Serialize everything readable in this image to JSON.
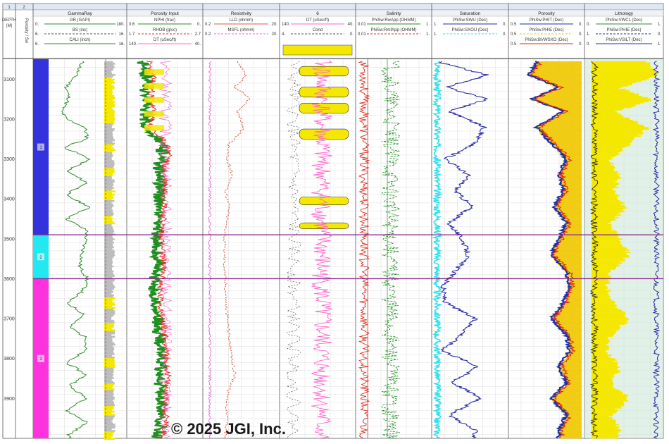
{
  "colors": {
    "gamma": "#2e8b2e",
    "yellow_fill": "#f5e800",
    "gray_fill": "#bdbdbd",
    "nphi": "#1f8f1f",
    "rhob": "#e03020",
    "dt": "#ff66cc",
    "resist_deep": "#e05a40",
    "resist_shallow": "#ee66dd",
    "swu": "#2a2aa8",
    "sxou": "#33e0ee",
    "phit": "#1a2fa8",
    "phie": "#f0c800",
    "bvw": "#e02020",
    "zone1": "#3333dd",
    "zone2": "#22e8f0",
    "zone3": "#ff33dd",
    "zone_line": "#8a2b8a"
  },
  "header": {
    "track_numbers": [
      "1",
      "2",
      "",
      "",
      "",
      "",
      "",
      "",
      "",
      ""
    ],
    "depth_label": "DEPTH",
    "depth_unit": "(M)",
    "zone_col_label": "Porosity / Sw",
    "track_titles": [
      "GammaRay",
      "Porosity Input",
      "Resistivity",
      "6",
      "Salinity",
      "Saturation",
      "Porosity",
      "Lithology"
    ],
    "curves": {
      "gammaray": [
        {
          "name": "GR (GAPI)",
          "left": "0.",
          "right": "180."
        },
        {
          "name": "BS (inc)",
          "left": "6.",
          "right": "16."
        },
        {
          "name": "CALI (inch)",
          "left": "6.",
          "right": "16."
        }
      ],
      "porosity_input": [
        {
          "name": "NPHI (frac)",
          "left": "0.6",
          "right": "0."
        },
        {
          "name": "RHOB (g/cc)",
          "left": "1.7",
          "right": "2.7"
        },
        {
          "name": "DT (uSec/ft)",
          "left": "140.",
          "right": "40."
        }
      ],
      "resistivity": [
        {
          "name": "LLD (ohmm)",
          "left": "0.2",
          "right": "20."
        },
        {
          "name": "MSFL (ohmm)",
          "left": "0.2",
          "right": "20."
        }
      ],
      "track6": [
        {
          "name": "DT (uSec/ft)",
          "left": "140.",
          "right": "40."
        },
        {
          "name": "Cond",
          "left": "4.",
          "right": "0."
        }
      ],
      "salinity": [
        {
          "name": "PhiSw:RwApp (OHMM)",
          "left": "0.01",
          "right": "1."
        },
        {
          "name": "PhiSw:RmfApp (OHMM)",
          "left": "0.01",
          "right": "1."
        }
      ],
      "saturation": [
        {
          "name": "PhiSw:SWU (Dec)",
          "left": "1.",
          "right": "0."
        },
        {
          "name": "PhiSw:SXOU (Dec)",
          "left": "1.",
          "right": "0."
        }
      ],
      "porosity": [
        {
          "name": "PhiSw:PHIT (Dec)",
          "left": "0.5",
          "right": "0."
        },
        {
          "name": "PhiSw:PHIE (Dec)",
          "left": "0.5",
          "right": "0."
        },
        {
          "name": "PhiSw:BVWSXO (Dec)",
          "left": "0.5",
          "right": "0."
        }
      ],
      "lithology": [
        {
          "name": "PhiSw:VWCL (Dec)",
          "left": "0.",
          "right": "1."
        },
        {
          "name": "PhiSw:PHIE (Dec)",
          "left": "1.",
          "right": "0."
        },
        {
          "name": "PhiSw:VSILT (Dec)",
          "left": "0.",
          "right": "1."
        }
      ]
    }
  },
  "zones": [
    {
      "label": "1",
      "top": 3050,
      "bottom": 3490
    },
    {
      "label": "2",
      "top": 3490,
      "bottom": 3600
    },
    {
      "label": "3",
      "top": 3600,
      "bottom": 4000
    }
  ],
  "chart_data": {
    "type": "line",
    "title": "",
    "ylabel": "DEPTH (M)",
    "depth_range": [
      3050,
      4000
    ],
    "depth_ticks": [
      3100,
      3200,
      3300,
      3400,
      3500,
      3600,
      3700,
      3800,
      3900
    ],
    "grid": true,
    "zone_boundaries": [
      3490,
      3600
    ],
    "series": [
      {
        "name": "GR (GAPI)",
        "track": "GammaRay",
        "depth": [
          3060,
          3090,
          3120,
          3150,
          3180,
          3200,
          3220,
          3250,
          3270,
          3300,
          3330,
          3360,
          3390,
          3420,
          3450,
          3480,
          3510,
          3540,
          3570,
          3600,
          3630,
          3660,
          3690,
          3720,
          3750,
          3780,
          3810,
          3840,
          3870,
          3900,
          3930,
          3960,
          3990
        ],
        "values": [
          120,
          95,
          60,
          70,
          40,
          60,
          130,
          140,
          50,
          150,
          60,
          140,
          55,
          150,
          60,
          140,
          130,
          120,
          110,
          140,
          125,
          60,
          130,
          70,
          140,
          130,
          60,
          135,
          70,
          140,
          60,
          140,
          70
        ]
      },
      {
        "name": "RHOB (g/cc)",
        "track": "Porosity Input",
        "depth": [
          3060,
          3100,
          3140,
          3180,
          3220,
          3260,
          3290,
          3320,
          3360,
          3400,
          3440,
          3480,
          3520,
          3560,
          3600,
          3640,
          3680,
          3720,
          3760,
          3800,
          3840,
          3880,
          3920,
          3960,
          3990
        ],
        "values": [
          2.1,
          2.2,
          2.15,
          2.2,
          2.1,
          2.5,
          2.6,
          2.45,
          2.5,
          2.5,
          2.45,
          2.4,
          2.4,
          2.45,
          2.4,
          2.35,
          2.4,
          2.45,
          2.5,
          2.5,
          2.55,
          2.5,
          2.5,
          2.5,
          2.45
        ]
      },
      {
        "name": "LLD (ohmm)",
        "track": "Resistivity",
        "depth": [
          3060,
          3090,
          3120,
          3150,
          3180,
          3220,
          3260,
          3300,
          3340,
          3380,
          3420,
          3460,
          3500,
          3560,
          3620,
          3680,
          3740,
          3800,
          3840,
          3880,
          3920,
          3960,
          3990
        ],
        "values": [
          3,
          6,
          2,
          8,
          3,
          5,
          1.5,
          1.2,
          2,
          1.1,
          1.5,
          1.2,
          1.0,
          1.0,
          1.1,
          1.2,
          1.5,
          1.8,
          2.5,
          1.4,
          1.2,
          1.3,
          1.1
        ]
      },
      {
        "name": "PhiSw:SWU (Dec)",
        "track": "Saturation",
        "depth": [
          3060,
          3090,
          3120,
          3150,
          3180,
          3220,
          3260,
          3300,
          3340,
          3380,
          3420,
          3460,
          3500,
          3540,
          3580,
          3620,
          3660,
          3700,
          3740,
          3780,
          3820,
          3860,
          3900,
          3940,
          3980
        ],
        "values": [
          0.9,
          0.2,
          0.85,
          0.2,
          0.8,
          0.25,
          0.4,
          0.85,
          0.5,
          0.7,
          0.45,
          0.8,
          0.6,
          0.5,
          0.7,
          0.9,
          0.85,
          0.4,
          0.6,
          0.9,
          0.35,
          0.75,
          0.3,
          0.8,
          0.4
        ]
      },
      {
        "name": "PhiSw:PHIT (Dec)",
        "track": "Porosity",
        "depth": [
          3060,
          3090,
          3120,
          3150,
          3180,
          3220,
          3260,
          3300,
          3340,
          3380,
          3420,
          3460,
          3500,
          3540,
          3580,
          3620,
          3660,
          3700,
          3740,
          3780,
          3820,
          3860,
          3900,
          3940,
          3980
        ],
        "values": [
          0.3,
          0.35,
          0.15,
          0.33,
          0.12,
          0.3,
          0.2,
          0.1,
          0.15,
          0.12,
          0.18,
          0.1,
          0.15,
          0.2,
          0.1,
          0.08,
          0.12,
          0.2,
          0.1,
          0.08,
          0.15,
          0.1,
          0.2,
          0.1,
          0.15
        ]
      }
    ]
  },
  "copyright": "© 2025 JGI, Inc."
}
